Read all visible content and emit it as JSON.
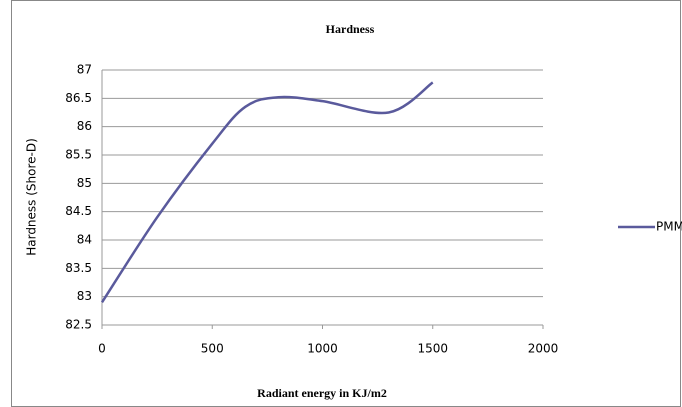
{
  "chart_data": {
    "type": "line",
    "title": "Hardness",
    "x_label": "Radiant energy in KJ/m2",
    "y_label": "Hardness (Shore-D)",
    "x": [
      0,
      250,
      500,
      650,
      800,
      1000,
      1300,
      1500
    ],
    "series": [
      {
        "name": "PMMA",
        "color": "#5a5a9c",
        "values": [
          82.9,
          84.4,
          85.7,
          86.35,
          86.52,
          86.45,
          86.25,
          86.78
        ]
      }
    ],
    "xlim": [
      0,
      2000
    ],
    "xticks": [
      0,
      500,
      1000,
      1500,
      2000
    ],
    "ylim": [
      82.5,
      87
    ],
    "yticks": [
      82.5,
      83,
      83.5,
      84,
      84.5,
      85,
      85.5,
      86,
      86.5,
      87
    ],
    "grid": true,
    "legend": "right"
  }
}
